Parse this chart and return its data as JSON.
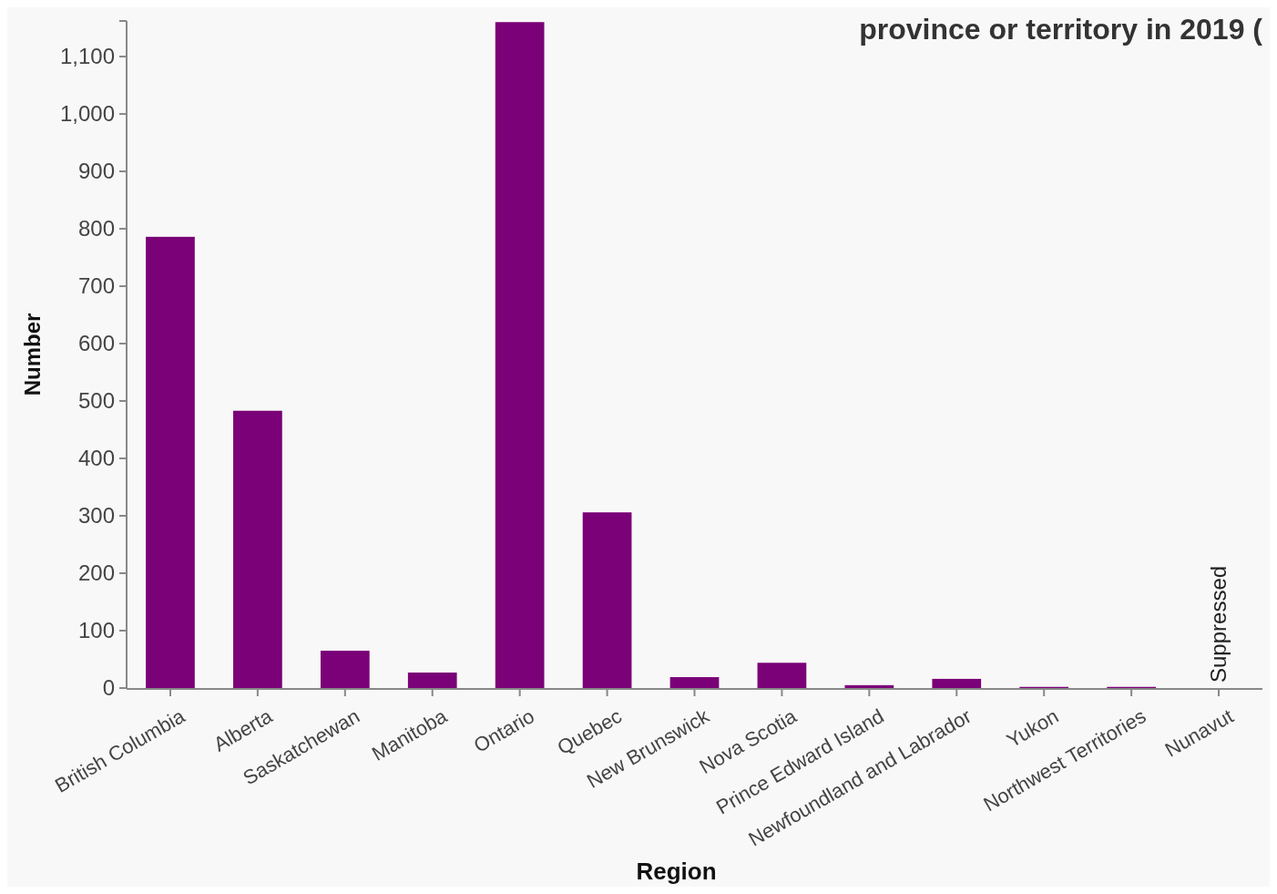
{
  "chart_data": {
    "type": "bar",
    "title": "province or territory in 2019 (",
    "xlabel": "Region",
    "ylabel": "Number",
    "categories": [
      "British Columbia",
      "Alberta",
      "Saskatchewan",
      "Manitoba",
      "Ontario",
      "Quebec",
      "New Brunswick",
      "Nova Scotia",
      "Prince Edward Island",
      "Newfoundland and Labrador",
      "Yukon",
      "Northwest Territories",
      "Nunavut"
    ],
    "values": [
      786,
      483,
      65,
      27,
      1160,
      306,
      19,
      44,
      5,
      16,
      2,
      2,
      null
    ],
    "color": "#7a0177",
    "ylim": [
      0,
      1162
    ],
    "yticks": [
      {
        "value": 0,
        "label": "0"
      },
      {
        "value": 100,
        "label": "100"
      },
      {
        "value": 200,
        "label": "200"
      },
      {
        "value": 300,
        "label": "300"
      },
      {
        "value": 400,
        "label": "400"
      },
      {
        "value": 500,
        "label": "500"
      },
      {
        "value": 600,
        "label": "600"
      },
      {
        "value": 700,
        "label": "700"
      },
      {
        "value": 800,
        "label": "800"
      },
      {
        "value": 900,
        "label": "900"
      },
      {
        "value": 1000,
        "label": "1,000"
      },
      {
        "value": 1100,
        "label": "1,100"
      }
    ],
    "grid": false,
    "annotations": [
      "Suppressed"
    ]
  }
}
